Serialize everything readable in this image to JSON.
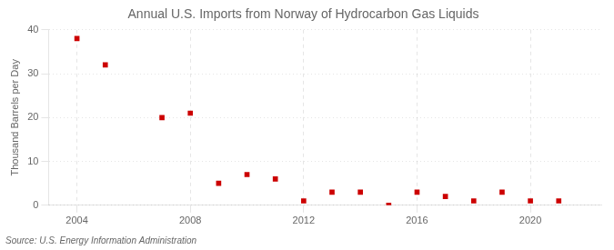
{
  "chart_data": {
    "type": "scatter",
    "title": "Annual U.S. Imports from Norway of Hydrocarbon Gas Liquids",
    "ylabel": "Thousand Barrels per Day",
    "annotation": "Source: U.S. Energy Information Administration",
    "x": [
      2004,
      2005,
      2007,
      2008,
      2009,
      2010,
      2011,
      2012,
      2013,
      2014,
      2015,
      2016,
      2017,
      2018,
      2019,
      2020,
      2021
    ],
    "values": [
      38.0,
      32.0,
      20.0,
      21.0,
      5.0,
      7.0,
      6.0,
      1.0,
      3.0,
      3.0,
      0.0,
      3.0,
      2.0,
      1.0,
      3.0,
      1.0,
      1.0
    ],
    "color": "#cc0000",
    "marker": "square",
    "xlim": [
      2003.0,
      2022.5
    ],
    "ylim": [
      0,
      40
    ],
    "xticks": [
      2004,
      2008,
      2012,
      2016,
      2020
    ],
    "yticks": [
      0,
      10,
      20,
      30,
      40
    ],
    "grid": true
  }
}
